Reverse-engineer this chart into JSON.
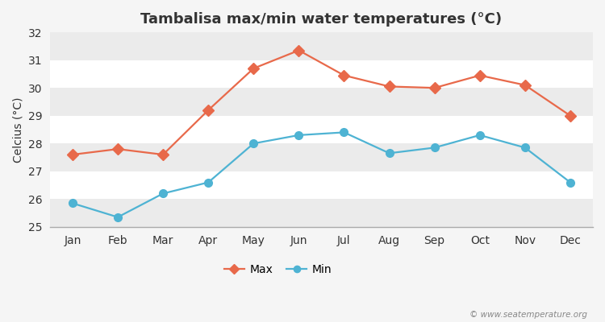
{
  "title": "Tambalisa max/min water temperatures (°C)",
  "ylabel": "Celcius (°C)",
  "months": [
    "Jan",
    "Feb",
    "Mar",
    "Apr",
    "May",
    "Jun",
    "Jul",
    "Aug",
    "Sep",
    "Oct",
    "Nov",
    "Dec"
  ],
  "max_temps": [
    27.6,
    27.8,
    27.6,
    29.2,
    30.7,
    31.35,
    30.45,
    30.05,
    30.0,
    30.45,
    30.1,
    29.0
  ],
  "min_temps": [
    25.85,
    25.35,
    26.2,
    26.6,
    28.0,
    28.3,
    28.4,
    27.65,
    27.85,
    28.3,
    27.85,
    26.6
  ],
  "max_color": "#e8694a",
  "min_color": "#4eb3d3",
  "bg_color": "#f5f5f5",
  "plot_bg_color": "#ffffff",
  "band_color": "#ebebeb",
  "ylim": [
    25,
    32
  ],
  "yticks": [
    25,
    26,
    27,
    28,
    29,
    30,
    31,
    32
  ],
  "watermark": "© www.seatemperature.org",
  "legend_labels": [
    "Max",
    "Min"
  ],
  "max_marker": "D",
  "min_marker": "o",
  "max_markersize": 7,
  "min_markersize": 7,
  "linewidth": 1.6,
  "title_fontsize": 13,
  "label_fontsize": 10,
  "tick_fontsize": 10
}
